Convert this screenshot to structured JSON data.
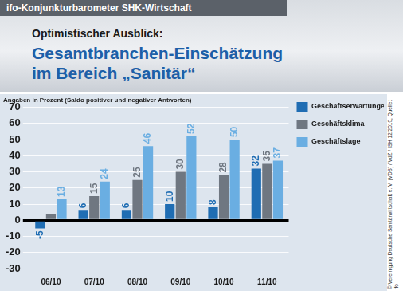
{
  "chart_data": {
    "type": "bar",
    "title": "Gesamtbranchen-Einschätzung im Bereich „Sanitär“",
    "subtitle": "Optimistischer Ausblick:",
    "y_label": "Angaben in Prozent (Saldo positiver und negativer Antworten)",
    "annotations": [
      "ifo-Konjunkturbarometer SHK-Wirtschaft",
      "© Vereinigung Deutsche Sanitärwirtschaft e. V. (VDS) / VdZ / ISH 12/2010, Quelle: ifo"
    ],
    "categories": [
      "06/10",
      "07/10",
      "08/10",
      "09/10",
      "10/10",
      "11/10"
    ],
    "series": [
      {
        "name": "Geschäftserwartungen",
        "color": "#1f6db3",
        "values": [
          -5,
          6,
          6,
          10,
          8,
          32
        ]
      },
      {
        "name": "Geschäftsklima",
        "color": "#6f7781",
        "values": [
          4,
          15,
          25,
          30,
          28,
          35
        ],
        "value_labels": [
          null,
          "15",
          "25",
          "30",
          "28",
          "35"
        ]
      },
      {
        "name": "Geschäftslage",
        "color": "#6aaee2",
        "values": [
          13,
          24,
          46,
          52,
          50,
          37
        ]
      }
    ],
    "ylim": [
      -30,
      70
    ],
    "yticks": [
      -30,
      -20,
      -10,
      0,
      10,
      20,
      30,
      40,
      50,
      60,
      70
    ],
    "grid": true,
    "legend": "right",
    "data_labels": true
  }
}
